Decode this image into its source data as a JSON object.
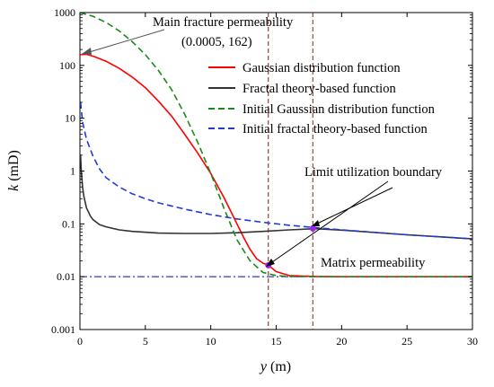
{
  "chart_data": {
    "type": "line",
    "xlabel_var": "y",
    "xlabel_unit": "(m)",
    "ylabel_var": "k",
    "ylabel_unit": "(mD)",
    "x_scale": "linear",
    "y_scale": "log",
    "xlim": [
      0,
      30
    ],
    "ylim": [
      0.001,
      1000
    ],
    "xticks": [
      0,
      5,
      10,
      15,
      20,
      25,
      30
    ],
    "yticks": [
      0.001,
      0.01,
      0.1,
      1,
      10,
      100,
      1000
    ],
    "xtick_labels": [
      "0",
      "5",
      "10",
      "15",
      "20",
      "25",
      "30"
    ],
    "ytick_labels": [
      "0.001",
      "0.01",
      "0.1",
      "1",
      "10",
      "100",
      "1000"
    ],
    "grid": false,
    "legend_position": "upper-right",
    "series": [
      {
        "name": "Gaussian distribution function",
        "color": "#ff0000",
        "dash": "solid",
        "x": [
          0,
          0.5,
          1,
          2,
          3,
          4,
          5,
          6,
          7,
          8,
          9,
          10,
          11,
          12,
          12.5,
          13,
          13.5,
          14,
          14.4,
          15,
          16,
          18,
          20,
          25,
          30
        ],
        "y": [
          160,
          162,
          150,
          120,
          88,
          60,
          38,
          21,
          11,
          5,
          2.2,
          0.9,
          0.32,
          0.1,
          0.056,
          0.033,
          0.022,
          0.018,
          0.0165,
          0.0125,
          0.0105,
          0.0101,
          0.01,
          0.01,
          0.01
        ]
      },
      {
        "name": "Fractal theory-based function",
        "color": "#333333",
        "dash": "solid",
        "x": [
          0.05,
          0.1,
          0.2,
          0.3,
          0.5,
          0.8,
          1,
          1.5,
          2,
          3,
          4,
          6,
          8,
          10,
          12,
          14,
          16,
          18,
          20,
          25,
          30
        ],
        "y": [
          2.0,
          1.0,
          0.5,
          0.33,
          0.2,
          0.14,
          0.12,
          0.097,
          0.088,
          0.077,
          0.072,
          0.067,
          0.066,
          0.066,
          0.068,
          0.072,
          0.077,
          0.081,
          0.076,
          0.062,
          0.052
        ]
      },
      {
        "name": "Initial Gaussian distribution function",
        "color": "#1a8a1a",
        "dash": "dashed",
        "x": [
          0,
          1,
          2,
          3,
          4,
          5,
          6,
          7,
          8,
          9,
          10,
          11,
          12,
          13,
          14,
          15,
          16,
          20,
          30
        ],
        "y": [
          1000,
          850,
          650,
          450,
          280,
          160,
          80,
          35,
          12,
          3.5,
          0.9,
          0.2,
          0.05,
          0.02,
          0.012,
          0.0105,
          0.0101,
          0.01,
          0.01
        ]
      },
      {
        "name": "Initial fractal theory-based function",
        "color": "#1f3bd6",
        "dash": "dashed",
        "x": [
          0.05,
          0.2,
          0.5,
          1,
          1.5,
          2,
          3,
          4,
          5,
          6,
          8,
          10,
          12,
          14,
          16,
          18,
          20,
          25,
          30
        ],
        "y": [
          20,
          8.5,
          4,
          1.9,
          1.1,
          0.75,
          0.5,
          0.37,
          0.3,
          0.25,
          0.19,
          0.15,
          0.124,
          0.107,
          0.094,
          0.085,
          0.077,
          0.062,
          0.052
        ]
      }
    ],
    "reference_lines": {
      "horizontal": [
        {
          "y": 0.01,
          "color": "#0000cc",
          "style": "dash-dot"
        }
      ],
      "vertical": [
        {
          "x": 14.4,
          "color": "#8b1a1a",
          "style": "dashed"
        },
        {
          "x": 17.8,
          "color": "#8b1a1a",
          "style": "dashed"
        }
      ]
    },
    "markers": [
      {
        "x": 14.4,
        "y": 0.0165,
        "color": "#a020f0"
      },
      {
        "x": 17.8,
        "y": 0.082,
        "color": "#a020f0"
      }
    ],
    "annotations": {
      "main_fracture": {
        "line1": "Main fracture permeability",
        "line2": "(0.0005, 162)",
        "x": 0.0005,
        "y": 162
      },
      "limit_boundary": {
        "text": "Limit utilization boundary",
        "targets": [
          [
            14.4,
            0.0165
          ],
          [
            17.8,
            0.082
          ]
        ]
      },
      "matrix": {
        "text": "Matrix permeability"
      }
    }
  }
}
